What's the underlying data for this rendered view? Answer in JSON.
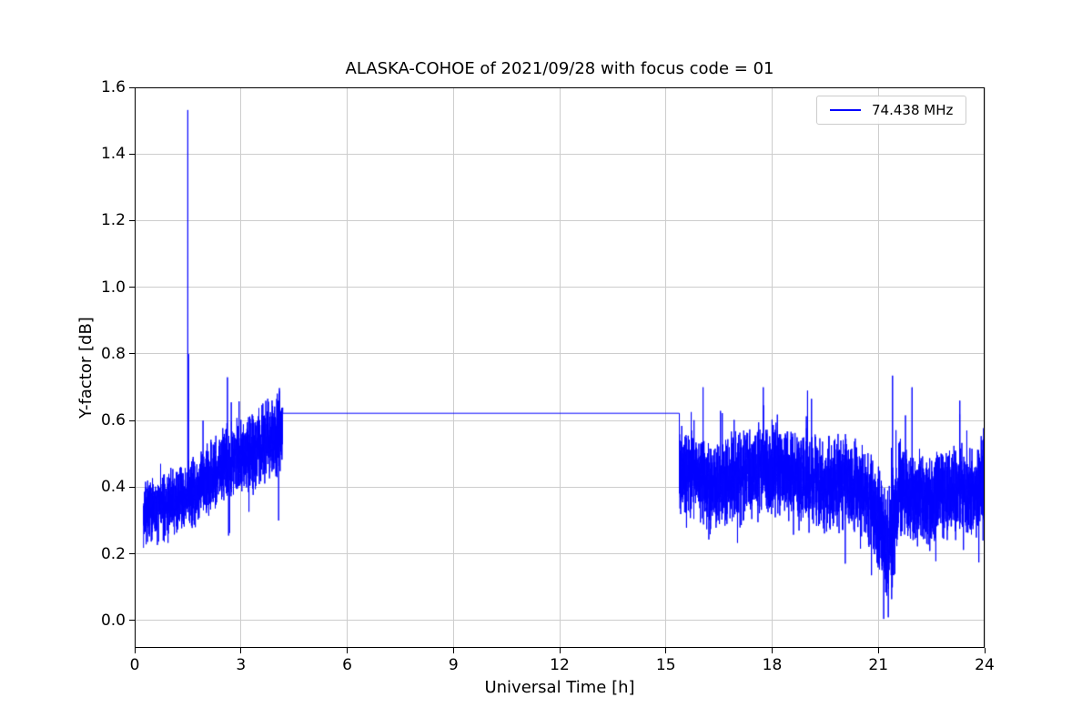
{
  "chart_data": {
    "type": "line",
    "title": "ALASKA-COHOE of 2021/09/28 with focus code = 01",
    "xlabel": "Universal Time [h]",
    "ylabel": "Y-factor [dB]",
    "xlim": [
      0,
      24
    ],
    "ylim": [
      -0.082,
      1.6
    ],
    "xticks": [
      0,
      3,
      6,
      9,
      12,
      15,
      18,
      21,
      24
    ],
    "xtick_labels": [
      "0",
      "3",
      "6",
      "9",
      "12",
      "15",
      "18",
      "21",
      "24"
    ],
    "yticks": [
      0.0,
      0.2,
      0.4,
      0.6,
      0.8,
      1.0,
      1.2,
      1.4,
      1.6
    ],
    "ytick_labels": [
      "0.0",
      "0.2",
      "0.4",
      "0.6",
      "0.8",
      "1.0",
      "1.2",
      "1.4",
      "1.6"
    ],
    "grid": true,
    "grid_color": "#cdcdcd",
    "line_color": "#0000ff",
    "legend": {
      "label": "74.438 MHz",
      "position": "upper right"
    },
    "sample_step": 0.0025,
    "random_seed": 7,
    "series": [
      {
        "name": "74.438 MHz",
        "color": "#0000ff",
        "segments": [
          {
            "type": "noisy",
            "t0": 0.25,
            "t1": 4.18,
            "mean": [
              [
                0.25,
                0.32
              ],
              [
                0.7,
                0.34
              ],
              [
                1.2,
                0.36
              ],
              [
                1.8,
                0.4
              ],
              [
                2.4,
                0.46
              ],
              [
                2.8,
                0.49
              ],
              [
                3.2,
                0.5
              ],
              [
                3.7,
                0.54
              ],
              [
                4.18,
                0.57
              ]
            ],
            "noise": [
              [
                0.25,
                0.11
              ],
              [
                2.0,
                0.12
              ],
              [
                3.0,
                0.13
              ],
              [
                4.18,
                0.15
              ]
            ],
            "min": 0.07,
            "max": 0.88
          },
          {
            "type": "flat",
            "t0": 4.18,
            "t1": 15.38,
            "y": 0.622
          },
          {
            "type": "noisy",
            "t0": 15.38,
            "t1": 24.0,
            "mean": [
              [
                15.38,
                0.47
              ],
              [
                15.7,
                0.44
              ],
              [
                16.3,
                0.41
              ],
              [
                17.0,
                0.43
              ],
              [
                17.8,
                0.46
              ],
              [
                18.3,
                0.45
              ],
              [
                18.8,
                0.43
              ],
              [
                19.5,
                0.41
              ],
              [
                20.2,
                0.41
              ],
              [
                20.8,
                0.36
              ],
              [
                21.1,
                0.27
              ],
              [
                21.3,
                0.22
              ],
              [
                21.6,
                0.4
              ],
              [
                22.0,
                0.38
              ],
              [
                22.5,
                0.36
              ],
              [
                23.0,
                0.38
              ],
              [
                23.5,
                0.39
              ],
              [
                24.0,
                0.41
              ]
            ],
            "noise": [
              [
                15.38,
                0.15
              ],
              [
                17.0,
                0.15
              ],
              [
                19.0,
                0.15
              ],
              [
                21.0,
                0.17
              ],
              [
                21.3,
                0.21
              ],
              [
                21.8,
                0.15
              ],
              [
                24.0,
                0.16
              ]
            ],
            "min": 0.0,
            "max": 0.74
          }
        ],
        "spikes": [
          {
            "t": 1.5,
            "y": 1.532
          },
          {
            "t": 1.52,
            "y": 0.8
          },
          {
            "t": 2.62,
            "y": 0.73
          },
          {
            "t": 16.05,
            "y": 0.7
          },
          {
            "t": 17.75,
            "y": 0.7
          },
          {
            "t": 19.0,
            "y": 0.69
          },
          {
            "t": 21.15,
            "y": 0.005
          },
          {
            "t": 21.28,
            "y": 0.01
          },
          {
            "t": 21.4,
            "y": 0.735
          },
          {
            "t": 21.95,
            "y": 0.7
          },
          {
            "t": 23.3,
            "y": 0.66
          }
        ]
      }
    ]
  }
}
